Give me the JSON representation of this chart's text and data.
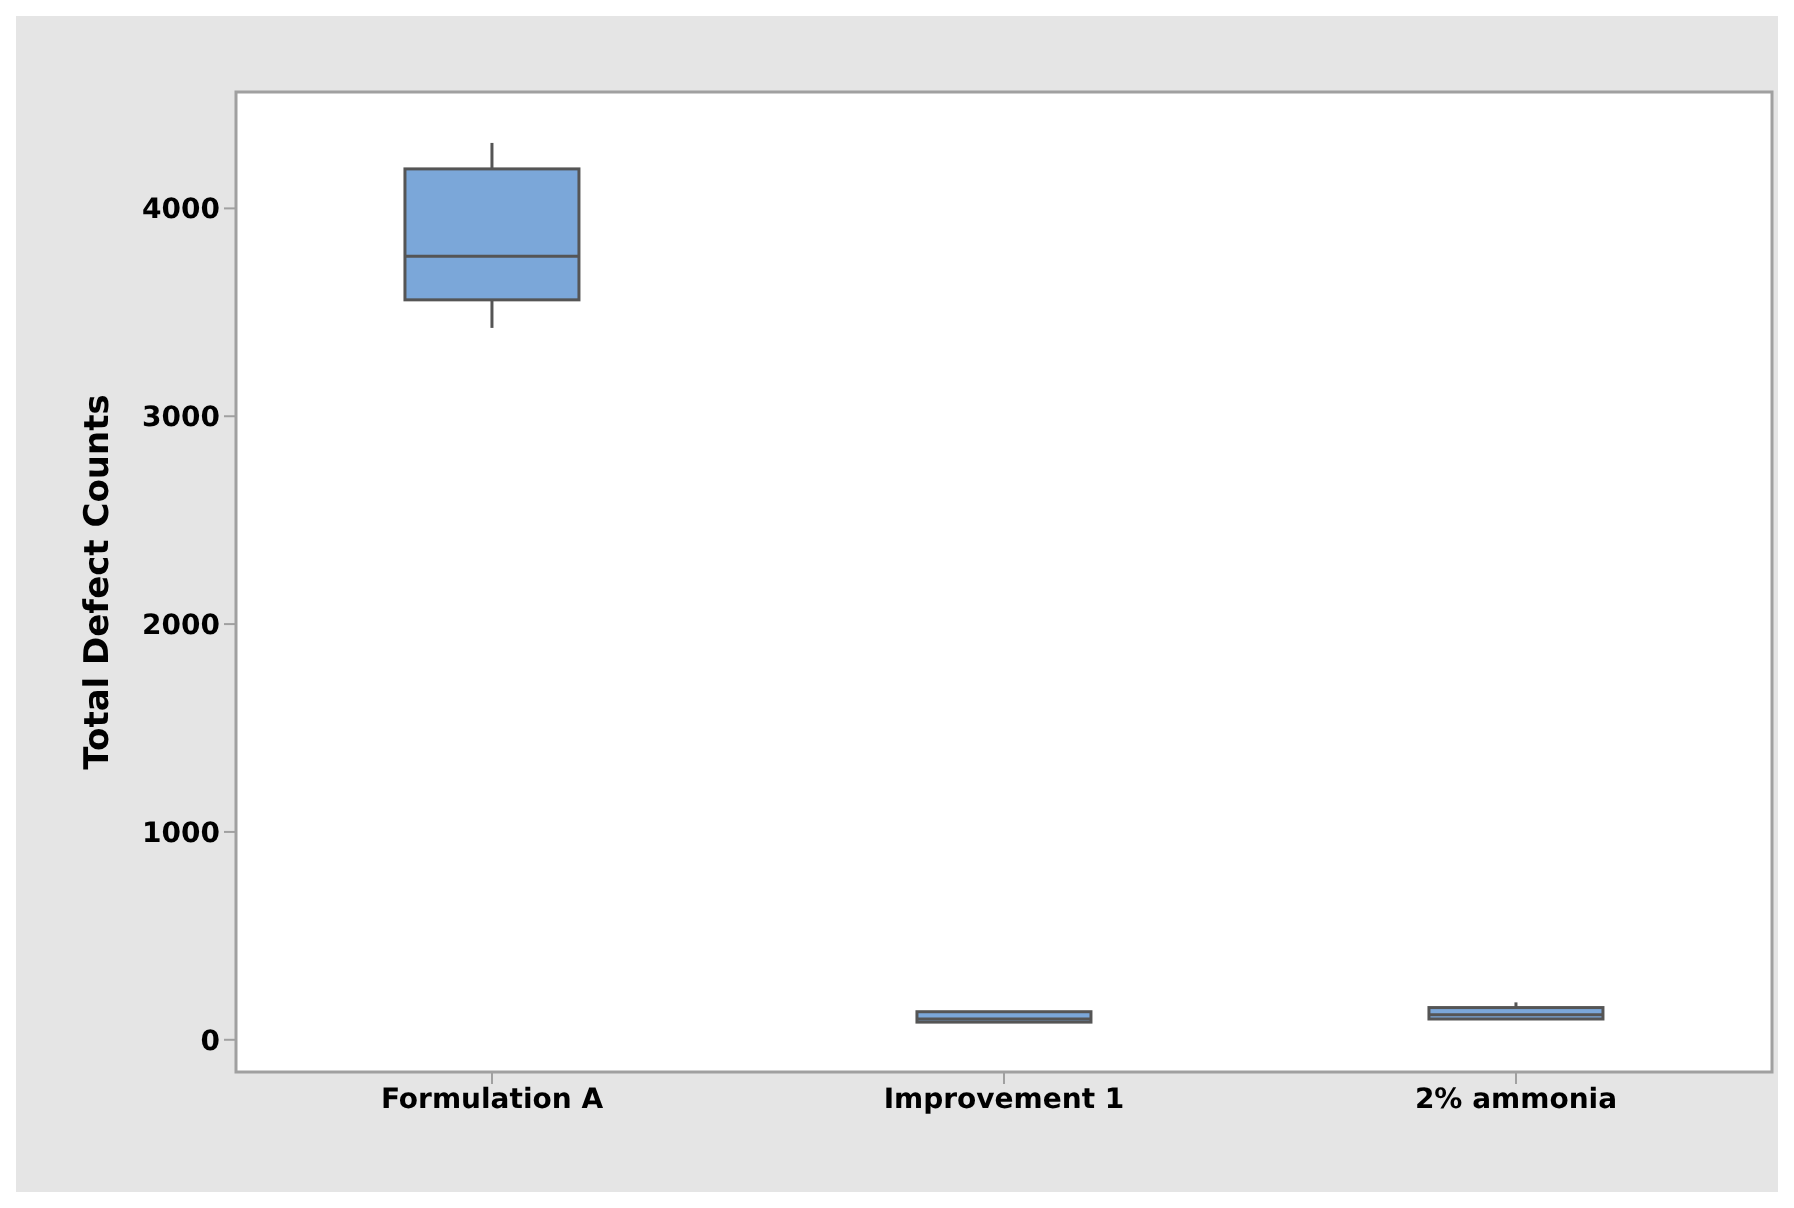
{
  "chart_data": {
    "type": "box",
    "ylabel": "Total Defect Counts",
    "categories": [
      "Formulation A",
      "Improvement 1",
      "2% ammonia"
    ],
    "boxes": [
      {
        "low": 3425,
        "q1": 3560,
        "median": 3770,
        "q3": 4190,
        "high": 4315
      },
      {
        "low": 85,
        "q1": 85,
        "median": 100,
        "q3": 135,
        "high": 135
      },
      {
        "low": 100,
        "q1": 100,
        "median": 120,
        "q3": 155,
        "high": 180
      }
    ],
    "color": "#7ba7d9",
    "ylim": [
      -155,
      4560
    ],
    "yticks": [
      0,
      1000,
      2000,
      3000,
      4000
    ],
    "grid": false
  }
}
